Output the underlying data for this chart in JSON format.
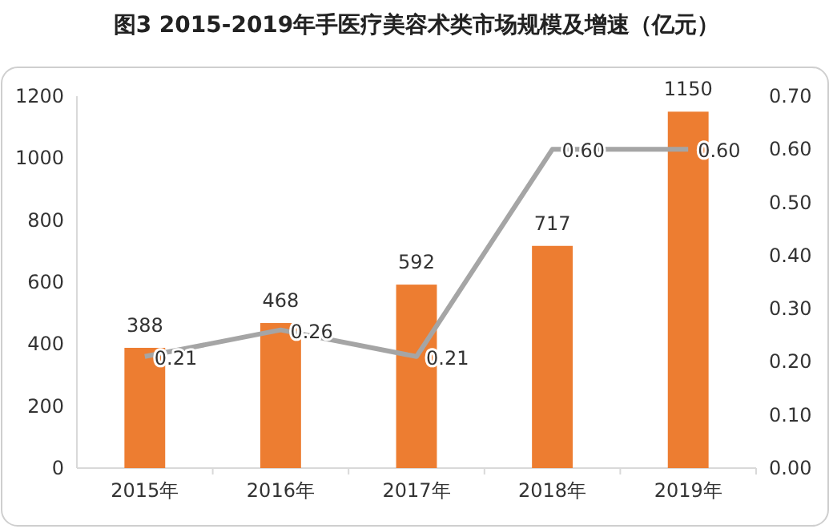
{
  "chart_data": {
    "type": "bar",
    "title": "图3  2015-2019年手医疗美容术类市场规模及增速（亿元）",
    "categories": [
      "2015年",
      "2016年",
      "2017年",
      "2018年",
      "2019年"
    ],
    "series": [
      {
        "color": "#ed7d31",
        "values": [
          388,
          468,
          592,
          717,
          1150
        ],
        "value_labels": [
          "388",
          "468",
          "592",
          "717",
          "1150"
        ]
      },
      {
        "type": "line",
        "axis": "y2",
        "color": "#a5a5a5",
        "values": [
          0.21,
          0.26,
          0.21,
          0.6,
          0.6
        ],
        "value_labels": [
          "0.21",
          "0.26",
          "0.21",
          "0.60",
          "0.60"
        ]
      }
    ],
    "ylim": [
      0,
      1200
    ],
    "yticks": [
      0,
      200,
      400,
      600,
      800,
      1000,
      1200
    ],
    "y2lim": [
      0,
      0.7
    ],
    "y2ticks": [
      {
        "value": 0,
        "label": "0.00"
      },
      {
        "value": 0.1,
        "label": "0.10"
      },
      {
        "value": 0.2,
        "label": "0.20"
      },
      {
        "value": 0.3,
        "label": "0.30"
      },
      {
        "value": 0.4,
        "label": "0.40"
      },
      {
        "value": 0.5,
        "label": "0.50"
      },
      {
        "value": 0.6,
        "label": "0.60"
      },
      {
        "value": 0.7,
        "label": "0.70"
      }
    ],
    "grid": false,
    "marker": "none",
    "line_style": "solid"
  }
}
